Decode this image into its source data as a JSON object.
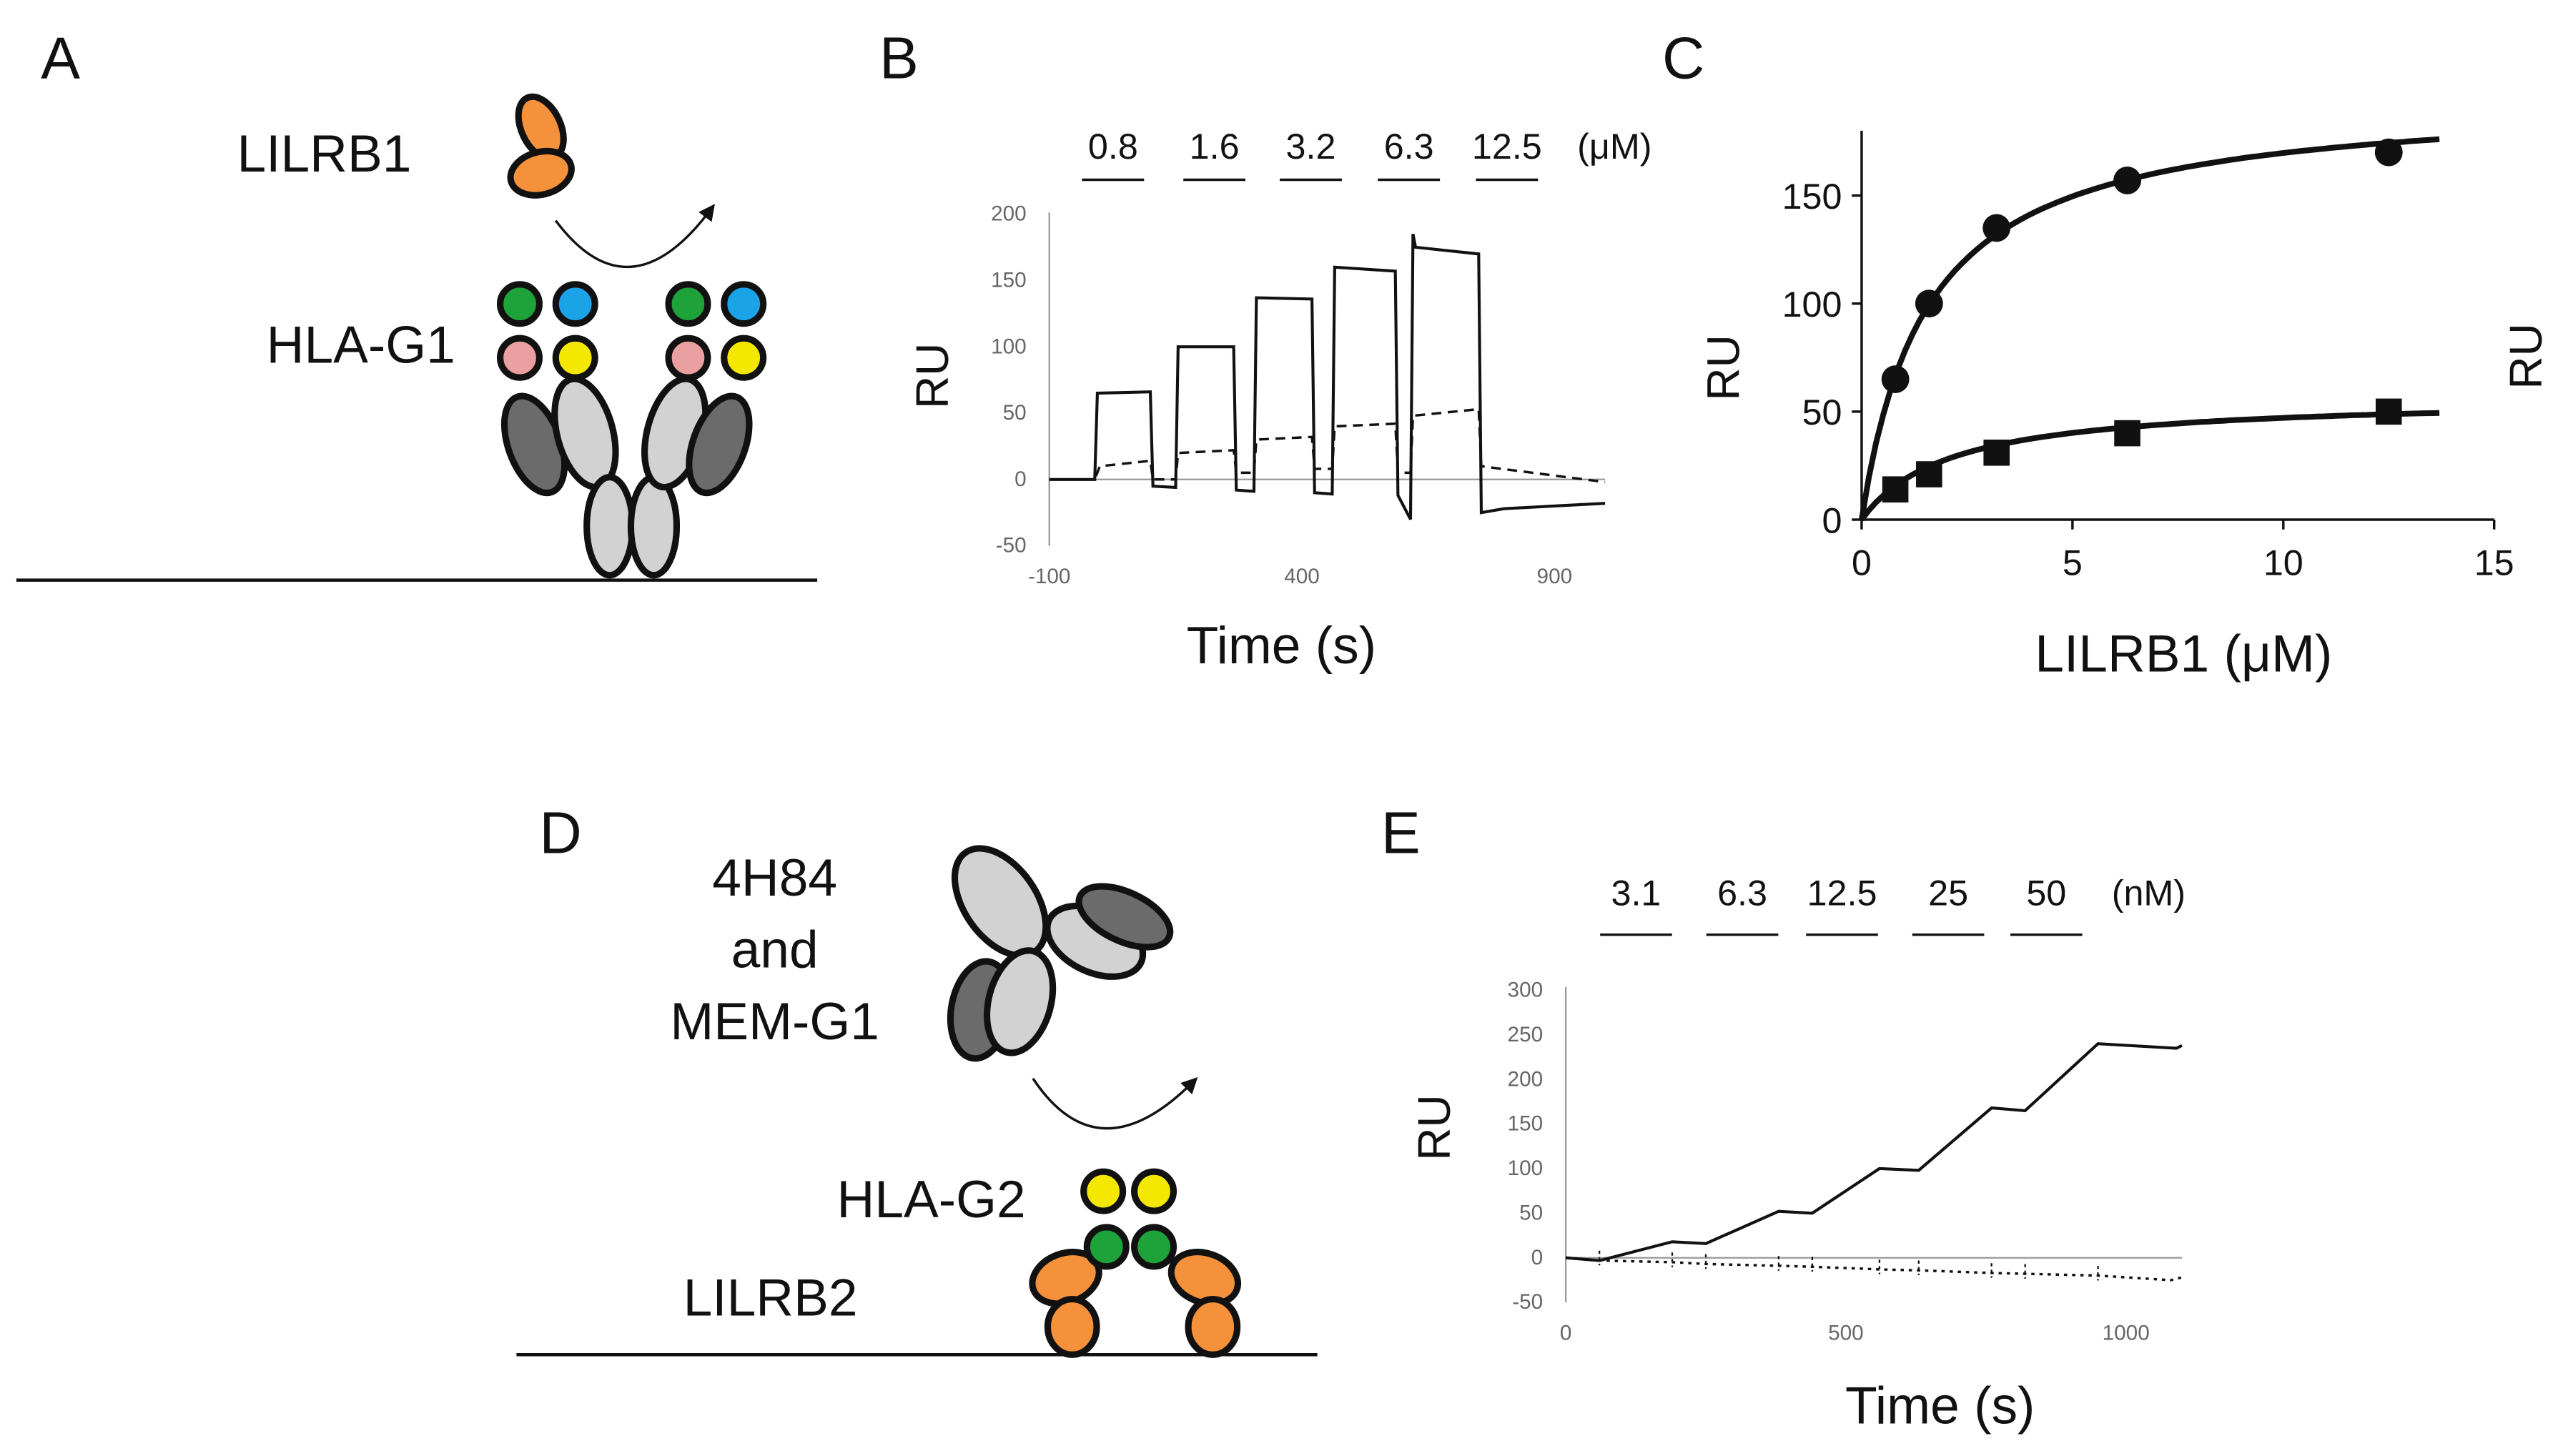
{
  "panels": {
    "A": {
      "letter": "A",
      "ligand_label": "LILRB1",
      "receptor_label": "HLA-G1",
      "colors": {
        "ligand": "#f5913a",
        "green": "#1ea33b",
        "blue": "#1aa3e6",
        "pink": "#eaa0a0",
        "yellow": "#f5e800",
        "dark": "#6b6b6b",
        "light": "#d2d2d2"
      }
    },
    "B": {
      "letter": "B",
      "ylabel": "RU",
      "xlabel": "Time (s)",
      "unit": "(μM)",
      "concentrations": [
        "0.8",
        "1.6",
        "3.2",
        "6.3",
        "12.5"
      ],
      "yticks": [
        "200",
        "150",
        "100",
        "50",
        "0",
        "-50"
      ],
      "xticks": [
        "-100",
        "400",
        "900"
      ]
    },
    "C": {
      "letter": "C",
      "ylabel": "RU",
      "ylabel_right": "RU",
      "xlabel": "LILRB1 (μM)",
      "yticks": [
        "150",
        "100",
        "50",
        "0"
      ],
      "xticks": [
        "0",
        "5",
        "10",
        "15"
      ]
    },
    "D": {
      "letter": "D",
      "antibody_label_lines": [
        "4H84",
        "and",
        "MEM-G1"
      ],
      "ligand_label": "HLA-G2",
      "receptor_label": "LILRB2",
      "colors": {
        "orange": "#f5913a",
        "green": "#1ea33b",
        "yellow": "#f5e800",
        "dark": "#6b6b6b",
        "light": "#d2d2d2"
      }
    },
    "E": {
      "letter": "E",
      "ylabel": "RU",
      "xlabel": "Time (s)",
      "unit": "(nM)",
      "concentrations": [
        "3.1",
        "6.3",
        "12.5",
        "25",
        "50"
      ],
      "yticks": [
        "300",
        "250",
        "200",
        "150",
        "100",
        "50",
        "0",
        "-50"
      ],
      "xticks": [
        "0",
        "500",
        "1000"
      ]
    }
  },
  "chart_data": [
    {
      "type": "line",
      "panel": "B",
      "xlabel": "Time (s)",
      "ylabel": "RU",
      "xlim": [
        -100,
        1000
      ],
      "ylim": [
        -50,
        200
      ],
      "injection_concentrations_uM": [
        0.8,
        1.6,
        3.2,
        6.3,
        12.5
      ],
      "series": [
        {
          "style": "solid",
          "points": [
            [
              -100,
              0
            ],
            [
              -10,
              0
            ],
            [
              -5,
              65
            ],
            [
              100,
              66
            ],
            [
              105,
              -5
            ],
            [
              150,
              -6
            ],
            [
              155,
              100
            ],
            [
              265,
              100
            ],
            [
              270,
              -8
            ],
            [
              305,
              -9
            ],
            [
              310,
              137
            ],
            [
              420,
              136
            ],
            [
              425,
              -10
            ],
            [
              460,
              -11
            ],
            [
              465,
              160
            ],
            [
              585,
              157
            ],
            [
              590,
              -12
            ],
            [
              615,
              -30
            ],
            [
              620,
              185
            ],
            [
              625,
              175
            ],
            [
              750,
              170
            ],
            [
              755,
              -25
            ],
            [
              800,
              -22
            ],
            [
              1000,
              -18
            ]
          ]
        },
        {
          "style": "dashed",
          "points": [
            [
              -100,
              0
            ],
            [
              -10,
              0
            ],
            [
              0,
              10
            ],
            [
              100,
              14
            ],
            [
              105,
              0
            ],
            [
              150,
              0
            ],
            [
              155,
              20
            ],
            [
              265,
              22
            ],
            [
              270,
              5
            ],
            [
              305,
              5
            ],
            [
              310,
              30
            ],
            [
              420,
              32
            ],
            [
              425,
              8
            ],
            [
              460,
              8
            ],
            [
              465,
              40
            ],
            [
              585,
              42
            ],
            [
              590,
              5
            ],
            [
              615,
              5
            ],
            [
              620,
              48
            ],
            [
              750,
              53
            ],
            [
              755,
              10
            ],
            [
              1000,
              -2
            ]
          ]
        }
      ]
    },
    {
      "type": "scatter",
      "panel": "C",
      "xlabel": "LILRB1 (μM)",
      "ylabel": "RU",
      "xlim": [
        0,
        15
      ],
      "ylim": [
        0,
        180
      ],
      "series": [
        {
          "marker": "circle",
          "x": [
            0.8,
            1.6,
            3.2,
            6.3,
            12.5
          ],
          "y": [
            65,
            100,
            135,
            157,
            170
          ],
          "fit": "saturation"
        },
        {
          "marker": "square",
          "x": [
            0.8,
            1.6,
            3.2,
            6.3,
            12.5
          ],
          "y": [
            14,
            21,
            31,
            40,
            50
          ],
          "fit": "saturation"
        }
      ]
    },
    {
      "type": "line",
      "panel": "E",
      "xlabel": "Time (s)",
      "ylabel": "RU",
      "xlim": [
        0,
        1100
      ],
      "ylim": [
        -50,
        300
      ],
      "injection_concentrations_nM": [
        3.1,
        6.3,
        12.5,
        25,
        50
      ],
      "series": [
        {
          "style": "solid",
          "points": [
            [
              0,
              0
            ],
            [
              60,
              -3
            ],
            [
              190,
              18
            ],
            [
              250,
              16
            ],
            [
              380,
              52
            ],
            [
              440,
              50
            ],
            [
              560,
              100
            ],
            [
              630,
              98
            ],
            [
              760,
              168
            ],
            [
              820,
              165
            ],
            [
              950,
              240
            ],
            [
              1090,
              235
            ],
            [
              1100,
              238
            ]
          ]
        },
        {
          "style": "dotted",
          "points": [
            [
              0,
              0
            ],
            [
              60,
              -3
            ],
            [
              190,
              -5
            ],
            [
              250,
              -7
            ],
            [
              380,
              -9
            ],
            [
              440,
              -10
            ],
            [
              560,
              -13
            ],
            [
              630,
              -14
            ],
            [
              760,
              -17
            ],
            [
              820,
              -18
            ],
            [
              950,
              -20
            ],
            [
              1080,
              -25
            ],
            [
              1100,
              -22
            ]
          ]
        }
      ]
    }
  ]
}
